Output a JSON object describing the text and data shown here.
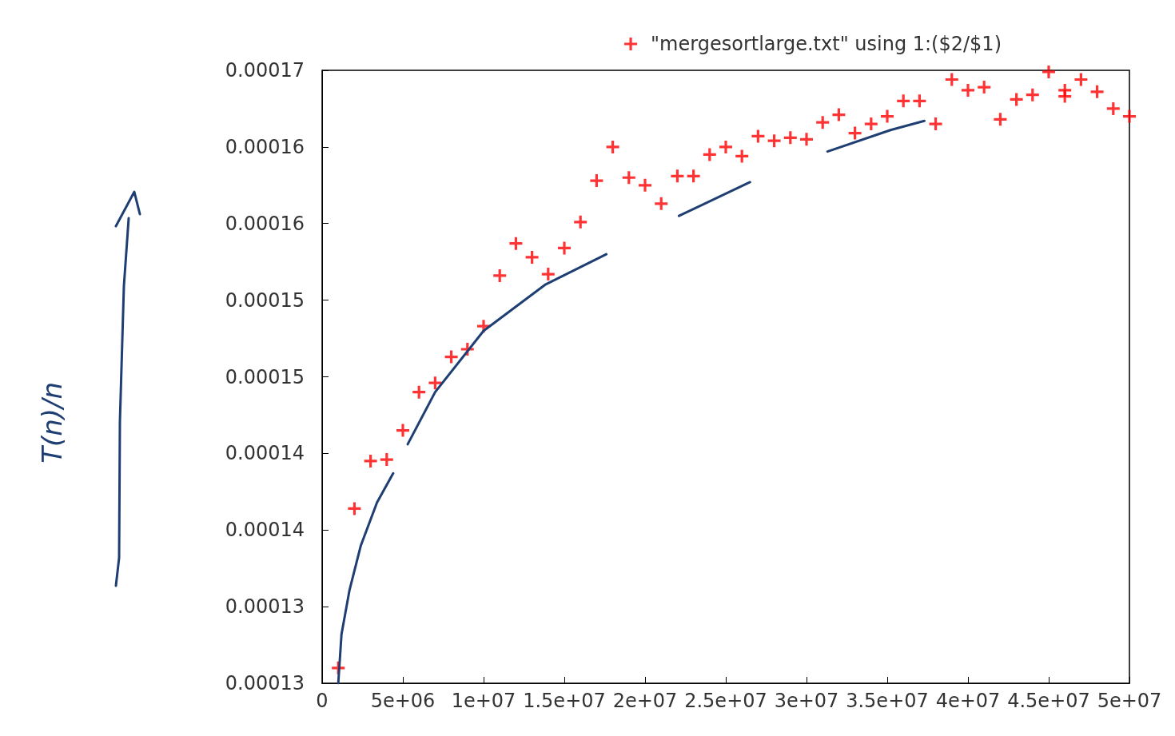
{
  "chart_data": {
    "type": "scatter",
    "annotations": [
      "T(n)/n"
    ],
    "xlim": [
      0,
      50000000
    ],
    "xticks": [
      0,
      {
        "value": 5000000,
        "label": "5e+06"
      },
      {
        "value": 10000000,
        "label": "1e+07"
      },
      {
        "value": 15000000,
        "label": "1.5e+07"
      },
      {
        "value": 20000000,
        "label": "2e+07"
      },
      {
        "value": 25000000,
        "label": "2.5e+07"
      },
      {
        "value": 30000000,
        "label": "3e+07"
      },
      {
        "value": 35000000,
        "label": "3.5e+07"
      },
      {
        "value": 40000000,
        "label": "4e+07"
      },
      {
        "value": 45000000,
        "label": "4.5e+07"
      },
      {
        "value": 50000000,
        "label": "5e+07"
      }
    ],
    "ylim": [
      0.00013,
      0.00017
    ],
    "yticks": [
      {
        "value": 0.00013,
        "label": "0.00013"
      },
      {
        "value": 0.000135,
        "label": "0.00013"
      },
      {
        "value": 0.00014,
        "label": "0.00014"
      },
      {
        "value": 0.000145,
        "label": "0.00014"
      },
      {
        "value": 0.00015,
        "label": "0.00015"
      },
      {
        "value": 0.000155,
        "label": "0.00015"
      },
      {
        "value": 0.00016,
        "label": "0.00016"
      },
      {
        "value": 0.000165,
        "label": "0.00016"
      },
      {
        "value": 0.00017,
        "label": "0.00017"
      }
    ],
    "grid": false,
    "legend": "top right",
    "series": [
      {
        "name": "\"mergesortlarge.txt\" using 1:($2/$1)",
        "color": "#ff0000",
        "marker": "cross",
        "x": [
          1000000,
          2000000,
          3000000,
          4000000,
          5000000,
          6000000,
          7000000,
          8000000,
          9000000,
          10000000,
          11000000,
          12000000,
          13000000,
          14000000,
          15000000,
          16000000,
          17000000,
          18000000,
          19000000,
          20000000,
          21000000,
          22000000,
          23000000,
          24000000,
          25000000,
          26000000,
          27000000,
          28000000,
          29000000,
          30000000,
          31000000,
          32000000,
          33000000,
          34000000,
          35000000,
          36000000,
          37000000,
          38000000,
          39000000,
          40000000,
          41000000,
          42000000,
          43000000,
          44000000,
          45000000,
          46000000,
          46000000,
          47000000,
          48000000,
          49000000,
          50000000
        ],
        "values": [
          0.000131,
          0.0001414,
          0.0001445,
          0.0001446,
          0.0001465,
          0.000149,
          0.0001496,
          0.0001513,
          0.0001518,
          0.0001533,
          0.0001566,
          0.0001587,
          0.0001578,
          0.0001567,
          0.0001584,
          0.0001601,
          0.0001628,
          0.000165,
          0.000163,
          0.0001625,
          0.0001613,
          0.0001631,
          0.0001631,
          0.0001645,
          0.000165,
          0.0001644,
          0.0001657,
          0.0001654,
          0.0001656,
          0.0001655,
          0.0001666,
          0.0001671,
          0.0001659,
          0.0001665,
          0.000167,
          0.000168,
          0.000168,
          0.0001665,
          0.0001694,
          0.0001687,
          0.0001689,
          0.0001668,
          0.0001681,
          0.0001684,
          0.0001699,
          0.0001687,
          0.0001683,
          0.0001694,
          0.0001686,
          0.0001675,
          0.000167
        ]
      },
      {
        "type": "line",
        "color": "#1f3f73",
        "marker": "none",
        "x": [
          1000000,
          1200000,
          1700000,
          2400000,
          3400000,
          4400000,
          4800000,
          5300000,
          7000000,
          10000000,
          13800000,
          17600000,
          19800000,
          22100000,
          26500000,
          28900000,
          31300000,
          35200000,
          37300000
        ],
        "values": [
          0.00013,
          0.0001332,
          0.0001361,
          0.000139,
          0.0001418,
          0.0001437,
          null,
          0.0001456,
          0.000149,
          0.000153,
          0.000156,
          0.000158,
          null,
          0.0001605,
          0.0001627,
          null,
          0.0001647,
          0.0001661,
          0.0001667
        ]
      }
    ]
  }
}
